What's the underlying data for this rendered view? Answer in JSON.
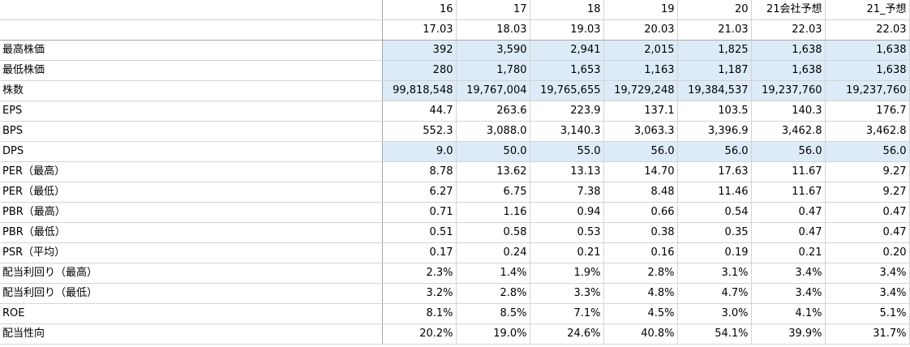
{
  "header": {
    "years": [
      "16",
      "17",
      "18",
      "19",
      "20",
      "21会社予想",
      "21_予想"
    ],
    "periods": [
      "17.03",
      "18.03",
      "19.03",
      "20.03",
      "21.03",
      "22.03",
      "22.03"
    ]
  },
  "rows": [
    {
      "label": "最高株価",
      "highlight": true,
      "values": [
        "392",
        "3,590",
        "2,941",
        "2,015",
        "1,825",
        "1,638",
        "1,638"
      ]
    },
    {
      "label": "最低株価",
      "highlight": true,
      "values": [
        "280",
        "1,780",
        "1,653",
        "1,163",
        "1,187",
        "1,638",
        "1,638"
      ]
    },
    {
      "label": "株数",
      "highlight": true,
      "values": [
        "99,818,548",
        "19,767,004",
        "19,765,655",
        "19,729,248",
        "19,384,537",
        "19,237,760",
        "19,237,760"
      ]
    },
    {
      "label": "EPS",
      "highlight": false,
      "values": [
        "44.7",
        "263.6",
        "223.9",
        "137.1",
        "103.5",
        "140.3",
        "176.7"
      ]
    },
    {
      "label": "BPS",
      "highlight": false,
      "values": [
        "552.3",
        "3,088.0",
        "3,140.3",
        "3,063.3",
        "3,396.9",
        "3,462.8",
        "3,462.8"
      ]
    },
    {
      "label": "DPS",
      "highlight": true,
      "values": [
        "9.0",
        "50.0",
        "55.0",
        "56.0",
        "56.0",
        "56.0",
        "56.0"
      ]
    },
    {
      "label": "PER（最高）",
      "highlight": false,
      "values": [
        "8.78",
        "13.62",
        "13.13",
        "14.70",
        "17.63",
        "11.67",
        "9.27"
      ]
    },
    {
      "label": "PER（最低）",
      "highlight": false,
      "values": [
        "6.27",
        "6.75",
        "7.38",
        "8.48",
        "11.46",
        "11.67",
        "9.27"
      ]
    },
    {
      "label": "PBR（最高）",
      "highlight": false,
      "values": [
        "0.71",
        "1.16",
        "0.94",
        "0.66",
        "0.54",
        "0.47",
        "0.47"
      ]
    },
    {
      "label": "PBR（最低）",
      "highlight": false,
      "values": [
        "0.51",
        "0.58",
        "0.53",
        "0.38",
        "0.35",
        "0.47",
        "0.47"
      ]
    },
    {
      "label": "PSR（平均）",
      "highlight": false,
      "values": [
        "0.17",
        "0.24",
        "0.21",
        "0.16",
        "0.19",
        "0.21",
        "0.20"
      ]
    },
    {
      "label": "配当利回り（最高）",
      "highlight": false,
      "values": [
        "2.3%",
        "1.4%",
        "1.9%",
        "2.8%",
        "3.1%",
        "3.4%",
        "3.4%"
      ]
    },
    {
      "label": "配当利回り（最低）",
      "highlight": false,
      "values": [
        "3.2%",
        "2.8%",
        "3.3%",
        "4.8%",
        "4.7%",
        "3.4%",
        "3.4%"
      ]
    },
    {
      "label": "ROE",
      "highlight": false,
      "values": [
        "8.1%",
        "8.5%",
        "7.1%",
        "4.5%",
        "3.0%",
        "4.1%",
        "5.1%"
      ]
    },
    {
      "label": "配当性向",
      "highlight": false,
      "values": [
        "20.2%",
        "19.0%",
        "24.6%",
        "40.8%",
        "54.1%",
        "39.9%",
        "31.7%"
      ]
    }
  ],
  "colors": {
    "highlight": "#dcebf7",
    "gridline": "#d4d4d4"
  }
}
